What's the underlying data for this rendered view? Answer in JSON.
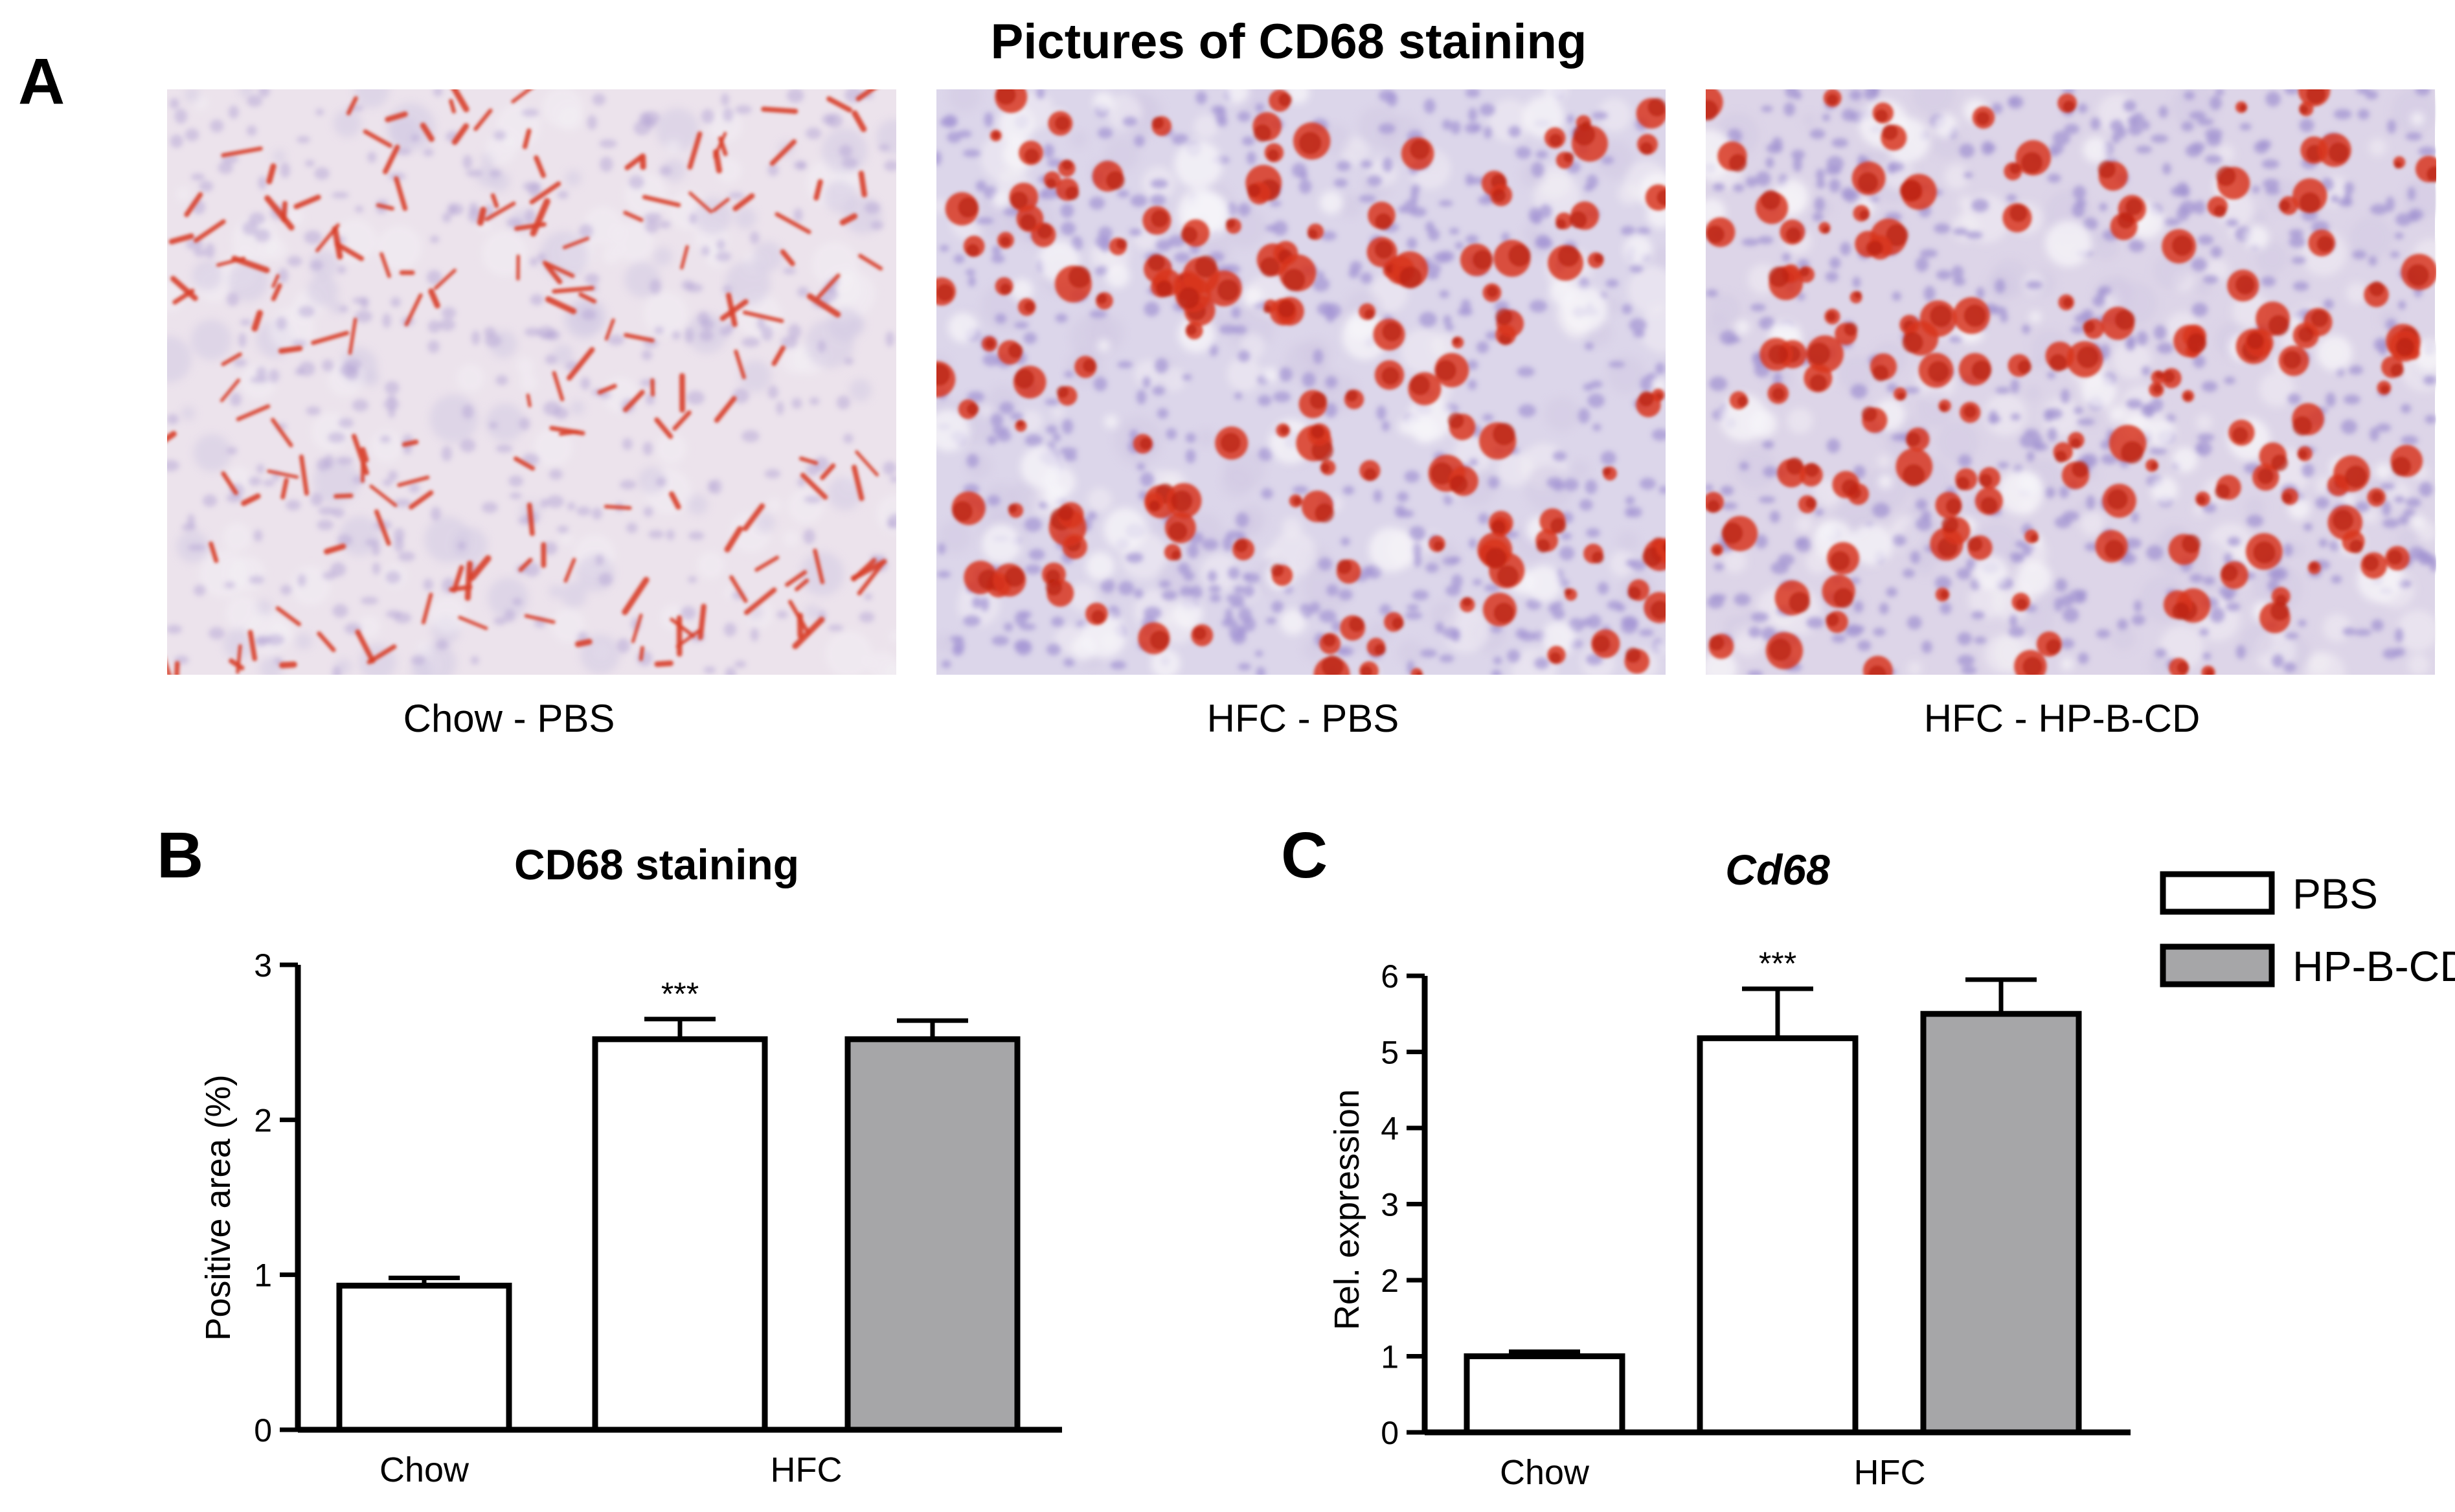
{
  "panel_a": {
    "letter": "A",
    "title": "Pictures of CD68 staining",
    "images": [
      {
        "caption": "Chow - PBS",
        "stain_density": "sparse",
        "tissue_color": "#ece3ec",
        "stain_color": "#d9402a",
        "nuclei_color": "#b6a6d6"
      },
      {
        "caption": "HFC - PBS",
        "stain_density": "dense",
        "tissue_color": "#dcd6ea",
        "stain_color": "#d8361f",
        "nuclei_color": "#a697d4"
      },
      {
        "caption": "HFC - HP-B-CD",
        "stain_density": "dense",
        "tissue_color": "#ddd5e8",
        "stain_color": "#d8351e",
        "nuclei_color": "#a394d1"
      }
    ]
  },
  "legend": {
    "position": "top-right",
    "entries": [
      {
        "label": "PBS",
        "color": "#ffffff"
      },
      {
        "label": "HP-B-CD",
        "color": "#a6a6a8"
      }
    ]
  },
  "chart_data": [
    {
      "panel": "B",
      "type": "bar",
      "title": "CD68 staining",
      "title_style": "bold",
      "xlabel": "",
      "ylabel": "Positive area (%)",
      "ylim": [
        0,
        3
      ],
      "yticks": [
        0,
        1,
        2,
        3
      ],
      "groups": [
        "Chow",
        "HFC"
      ],
      "bars": [
        {
          "group": "Chow",
          "series": "PBS",
          "value": 0.93,
          "error": 0.05,
          "annotation": "",
          "color": "#ffffff"
        },
        {
          "group": "HFC",
          "series": "PBS",
          "value": 2.52,
          "error": 0.13,
          "annotation": "***",
          "color": "#ffffff"
        },
        {
          "group": "HFC",
          "series": "HP-B-CD",
          "value": 2.52,
          "error": 0.12,
          "annotation": "",
          "color": "#a6a6a8"
        }
      ]
    },
    {
      "panel": "C",
      "type": "bar",
      "title": "Cd68",
      "title_style": "bold-italic",
      "xlabel": "",
      "ylabel": "Rel. expression",
      "ylim": [
        0,
        6
      ],
      "yticks": [
        0,
        1,
        2,
        3,
        4,
        5,
        6
      ],
      "groups": [
        "Chow",
        "HFC"
      ],
      "bars": [
        {
          "group": "Chow",
          "series": "PBS",
          "value": 1.0,
          "error": 0.06,
          "annotation": "",
          "color": "#ffffff"
        },
        {
          "group": "HFC",
          "series": "PBS",
          "value": 5.18,
          "error": 0.65,
          "annotation": "***",
          "color": "#ffffff"
        },
        {
          "group": "HFC",
          "series": "HP-B-CD",
          "value": 5.5,
          "error": 0.45,
          "annotation": "",
          "color": "#a6a6a8"
        }
      ]
    }
  ]
}
